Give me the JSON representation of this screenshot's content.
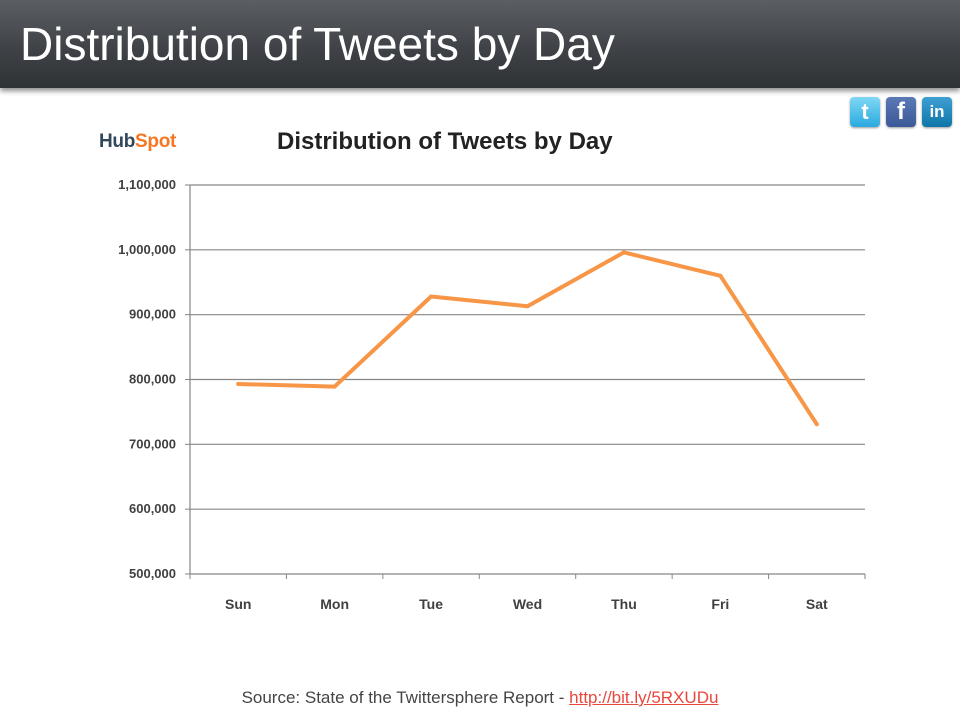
{
  "slide": {
    "title": "Distribution of Tweets by Day",
    "source_prefix": "Source: State of the Twittersphere Report - ",
    "source_link": "http://bit.ly/5RXUDu"
  },
  "logo": {
    "hub": "Hub",
    "spot": "Spot"
  },
  "social": [
    {
      "name": "twitter",
      "glyph": "t",
      "icon": "twitter-icon"
    },
    {
      "name": "facebook",
      "glyph": "f",
      "icon": "facebook-icon"
    },
    {
      "name": "linkedin",
      "glyph": "in",
      "icon": "linkedin-icon"
    }
  ],
  "chart_data": {
    "type": "line",
    "title": "Distribution of Tweets by Day",
    "categories": [
      "Sun",
      "Mon",
      "Tue",
      "Wed",
      "Thu",
      "Fri",
      "Sat"
    ],
    "series": [
      {
        "values": [
          793000,
          789000,
          928000,
          913000,
          996000,
          960000,
          731000
        ]
      }
    ],
    "ylim": [
      500000,
      1100000
    ],
    "yticks": [
      500000,
      600000,
      700000,
      800000,
      900000,
      1000000,
      1100000
    ],
    "ytick_labels": [
      "500,000",
      "600,000",
      "700,000",
      "800,000",
      "900,000",
      "1,000,000",
      "1,100,000"
    ],
    "grid": true,
    "colors": {
      "line": "#f79646",
      "grid": "#868686",
      "axis": "#868686"
    }
  }
}
